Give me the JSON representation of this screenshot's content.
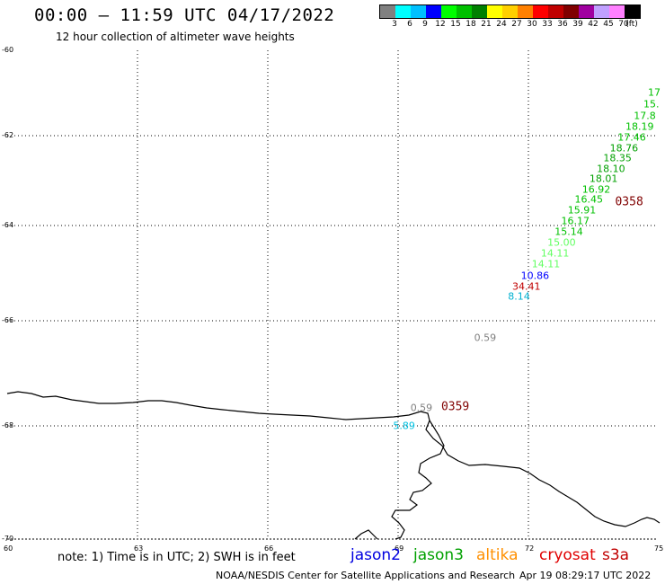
{
  "header": {
    "title": "00:00 – 11:59 UTC 04/17/2022",
    "subtitle": "12 hour collection of altimeter wave heights"
  },
  "legend": {
    "colors": [
      "#808080",
      "#00ffff",
      "#00c0ff",
      "#0000ff",
      "#00ff00",
      "#00c000",
      "#008000",
      "#ffff00",
      "#ffd000",
      "#ff8000",
      "#ff0000",
      "#c00000",
      "#800000",
      "#a000a0",
      "#c0a0ff",
      "#ff80ff",
      "#000000"
    ],
    "labels": [
      "3",
      "6",
      "9",
      "12",
      "15",
      "18",
      "21",
      "24",
      "27",
      "30",
      "33",
      "36",
      "39",
      "42",
      "45",
      "70",
      "(ft)"
    ]
  },
  "map": {
    "lat_labels": [
      "-60",
      "-62",
      "-64",
      "-66",
      "-68",
      "-70"
    ],
    "lon_labels": [
      "60",
      "63",
      "66",
      "69",
      "72",
      "75"
    ],
    "lat_range": [
      -70,
      -60
    ],
    "lon_range": [
      60,
      75
    ],
    "grid": "dotted"
  },
  "observations": [
    {
      "value": "17",
      "lon": 75.0,
      "lat": -60.87,
      "color": "#00c000"
    },
    {
      "value": "15.",
      "lon": 74.85,
      "lat": -61.11,
      "color": "#00c000"
    },
    {
      "value": "17.8",
      "lon": 74.7,
      "lat": -61.35,
      "color": "#00c000"
    },
    {
      "value": "18.19",
      "lon": 74.58,
      "lat": -61.57,
      "color": "#00c000"
    },
    {
      "value": "17.46",
      "lon": 74.4,
      "lat": -61.79,
      "color": "#00c000"
    },
    {
      "value": "18.76",
      "lon": 74.22,
      "lat": -62.0,
      "color": "#00a000"
    },
    {
      "value": "18.35",
      "lon": 74.07,
      "lat": -62.21,
      "color": "#00a000"
    },
    {
      "value": "18.10",
      "lon": 73.92,
      "lat": -62.42,
      "color": "#00a000"
    },
    {
      "value": "18.01",
      "lon": 73.75,
      "lat": -62.63,
      "color": "#00a000"
    },
    {
      "value": "16.92",
      "lon": 73.58,
      "lat": -62.85,
      "color": "#00c000"
    },
    {
      "value": "16.45",
      "lon": 73.41,
      "lat": -63.06,
      "color": "#00c000"
    },
    {
      "value": "15.91",
      "lon": 73.25,
      "lat": -63.28,
      "color": "#00c000"
    },
    {
      "value": "16.17",
      "lon": 73.1,
      "lat": -63.5,
      "color": "#00c000"
    },
    {
      "value": "15.14",
      "lon": 72.95,
      "lat": -63.71,
      "color": "#00c000"
    },
    {
      "value": "15.00",
      "lon": 72.78,
      "lat": -63.94,
      "color": "#60ff60"
    },
    {
      "value": "14.11",
      "lon": 72.63,
      "lat": -64.15,
      "color": "#60ff60"
    },
    {
      "value": "14.11",
      "lon": 72.42,
      "lat": -64.37,
      "color": "#60ff60"
    },
    {
      "value": "10.86",
      "lon": 72.17,
      "lat": -64.61,
      "color": "#0000ff"
    },
    {
      "value": "34.41",
      "lon": 71.97,
      "lat": -64.83,
      "color": "#c00000"
    },
    {
      "value": "8.14",
      "lon": 71.8,
      "lat": -65.04,
      "color": "#00b0d0"
    },
    {
      "value": "0.59",
      "lon": 71.02,
      "lat": -65.89,
      "color": "#808080"
    },
    {
      "value": "0.59",
      "lon": 69.55,
      "lat": -67.31,
      "color": "#808080"
    },
    {
      "value": "5.89",
      "lon": 69.15,
      "lat": -67.69,
      "color": "#00c0e0"
    }
  ],
  "passes": [
    {
      "label": "0358",
      "lon": 74.34,
      "lat": -63.1,
      "color": "#800000"
    },
    {
      "label": "0359",
      "lon": 70.33,
      "lat": -67.3,
      "color": "#800000"
    }
  ],
  "footer": {
    "note": "note: 1) Time is in UTC; 2) SWH is in feet",
    "satellites": [
      {
        "name": "jason2",
        "color": "#0000e0"
      },
      {
        "name": "jason3",
        "color": "#00a000"
      },
      {
        "name": "altika",
        "color": "#ff9000"
      },
      {
        "name": "cryosat",
        "color": "#e00000"
      },
      {
        "name": "s3a",
        "color": "#c00000"
      }
    ],
    "credit": "NOAA/NESDIS Center for Satellite Applications and Research",
    "timestamp": "Apr 19 08:29:17 UTC 2022"
  }
}
